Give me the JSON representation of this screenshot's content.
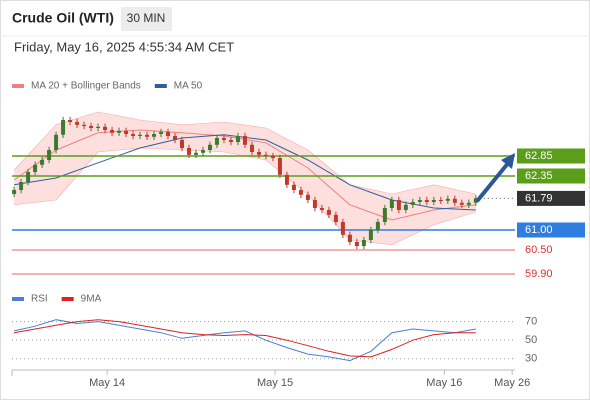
{
  "header": {
    "title": "Crude Oil (WTI)",
    "timeframe": "30 MIN",
    "timestamp": "Friday, May 16, 2025 4:55:34 AM CET"
  },
  "chart_data": [
    {
      "type": "candlestick",
      "up_color": "#3c7a2e",
      "down_color": "#c0392b",
      "xlim": [
        -0.3,
        71.6
      ],
      "xticks": [
        {
          "value": 13.3,
          "label": "May 14"
        },
        {
          "value": 37.3,
          "label": "May 15"
        },
        {
          "value": 61.5,
          "label": "May 16"
        },
        {
          "value": 71.2,
          "label": "May 26"
        }
      ],
      "ylim": [
        59.75,
        65.125
      ],
      "x": [
        0,
        1,
        2,
        3,
        4,
        5,
        6,
        7,
        8,
        9,
        10,
        11,
        12,
        13,
        14,
        15,
        16,
        17,
        18,
        19,
        20,
        21,
        22,
        23,
        24,
        25,
        26,
        27,
        28,
        29,
        30,
        31,
        32,
        33,
        34,
        35,
        36,
        37,
        38,
        39,
        40,
        41,
        42,
        43,
        44,
        45,
        46,
        47,
        48,
        49,
        50,
        51,
        52,
        53,
        54,
        55,
        56,
        57,
        58,
        59,
        60,
        61,
        62,
        63,
        64,
        65,
        66
      ],
      "open": [
        61.9,
        62.0,
        62.2,
        62.45,
        62.63,
        62.75,
        63.0,
        63.38,
        63.75,
        63.7,
        63.63,
        63.6,
        63.55,
        63.58,
        63.5,
        63.43,
        63.48,
        63.4,
        63.35,
        63.38,
        63.33,
        63.4,
        63.45,
        63.35,
        63.25,
        63.05,
        62.88,
        62.93,
        63.0,
        63.13,
        63.3,
        63.25,
        63.2,
        63.35,
        63.13,
        62.95,
        62.88,
        62.85,
        62.8,
        62.38,
        62.13,
        62.0,
        61.88,
        61.75,
        61.55,
        61.5,
        61.38,
        61.2,
        60.88,
        60.7,
        60.6,
        60.75,
        61.0,
        61.2,
        61.55,
        61.75,
        61.5,
        61.63,
        61.7,
        61.75,
        61.7,
        61.75,
        61.73,
        61.78,
        61.68,
        61.63,
        61.68
      ],
      "close": [
        62.0,
        62.2,
        62.45,
        62.63,
        62.75,
        63.0,
        63.38,
        63.75,
        63.7,
        63.63,
        63.6,
        63.55,
        63.58,
        63.5,
        63.43,
        63.48,
        63.4,
        63.35,
        63.38,
        63.33,
        63.4,
        63.45,
        63.35,
        63.25,
        63.05,
        62.88,
        62.93,
        63.0,
        63.13,
        63.3,
        63.25,
        63.2,
        63.35,
        63.13,
        62.95,
        62.88,
        62.85,
        62.8,
        62.38,
        62.13,
        62.0,
        61.88,
        61.75,
        61.55,
        61.5,
        61.38,
        61.2,
        60.88,
        60.7,
        60.6,
        60.75,
        61.0,
        61.2,
        61.55,
        61.75,
        61.5,
        61.63,
        61.7,
        61.75,
        61.7,
        61.75,
        61.73,
        61.78,
        61.68,
        61.63,
        61.68,
        61.79
      ],
      "high": [
        62.08,
        62.28,
        62.53,
        62.71,
        62.83,
        63.08,
        63.46,
        63.83,
        63.83,
        63.78,
        63.71,
        63.68,
        63.66,
        63.66,
        63.58,
        63.56,
        63.56,
        63.48,
        63.46,
        63.46,
        63.48,
        63.53,
        63.53,
        63.43,
        63.33,
        63.13,
        63.01,
        63.08,
        63.21,
        63.38,
        63.38,
        63.33,
        63.43,
        63.43,
        63.21,
        63.03,
        62.96,
        62.93,
        62.88,
        62.46,
        62.21,
        62.08,
        61.96,
        61.83,
        61.63,
        61.58,
        61.46,
        61.28,
        60.96,
        60.78,
        60.83,
        61.08,
        61.28,
        61.63,
        61.83,
        61.83,
        61.71,
        61.78,
        61.83,
        61.83,
        61.83,
        61.83,
        61.86,
        61.86,
        61.76,
        61.76,
        61.87
      ],
      "low": [
        61.82,
        61.92,
        62.12,
        62.37,
        62.55,
        62.67,
        62.92,
        63.3,
        63.62,
        63.55,
        63.52,
        63.47,
        63.47,
        63.42,
        63.35,
        63.35,
        63.32,
        63.27,
        63.27,
        63.25,
        63.25,
        63.32,
        63.27,
        63.17,
        62.97,
        62.8,
        62.8,
        62.85,
        62.92,
        63.05,
        63.17,
        63.12,
        63.12,
        63.05,
        62.87,
        62.8,
        62.77,
        62.72,
        62.3,
        62.05,
        61.92,
        61.8,
        61.67,
        61.47,
        61.42,
        61.3,
        61.12,
        60.8,
        60.62,
        60.52,
        60.52,
        60.67,
        60.92,
        61.12,
        61.47,
        61.42,
        61.42,
        61.55,
        61.62,
        61.62,
        61.62,
        61.65,
        61.65,
        61.6,
        61.55,
        61.55,
        61.6
      ],
      "series": [
        {
          "name": "MA 20 + Bollinger Bands",
          "color": "#f08080",
          "band_color": "#fde0de",
          "x": [
            0,
            6,
            12,
            18,
            24,
            30,
            36,
            42,
            48,
            54,
            60,
            66
          ],
          "values": [
            62.25,
            63.0,
            63.43,
            63.5,
            63.43,
            63.35,
            63.18,
            62.55,
            61.63,
            61.25,
            61.5,
            61.63
          ],
          "upper": [
            62.5,
            63.63,
            63.95,
            63.75,
            63.63,
            63.7,
            63.55,
            63.0,
            62.13,
            61.9,
            62.13,
            61.9
          ],
          "lower": [
            61.63,
            61.75,
            62.95,
            63.05,
            63.0,
            62.95,
            62.75,
            61.88,
            60.75,
            60.63,
            61.13,
            61.45
          ]
        },
        {
          "name": "MA 50",
          "color": "#2f5f9e",
          "x": [
            0,
            6,
            12,
            18,
            24,
            30,
            36,
            42,
            48,
            54,
            60,
            66
          ],
          "values": [
            62.13,
            62.3,
            62.68,
            63.05,
            63.3,
            63.38,
            63.25,
            62.75,
            62.13,
            61.75,
            61.55,
            61.5
          ]
        }
      ],
      "levels": [
        {
          "value": 62.85,
          "color": "#5a9e1a",
          "style": "box"
        },
        {
          "value": 62.35,
          "color": "#5a9e1a",
          "style": "box"
        },
        {
          "value": 61.79,
          "color": "#333333",
          "style": "last"
        },
        {
          "value": 61,
          "label": "61.00",
          "color": "#2f7de1",
          "style": "box"
        },
        {
          "value": 60.5,
          "label": "60.50",
          "color": "#e03030",
          "style": "text"
        },
        {
          "value": 59.9,
          "label": "59.90",
          "color": "#e03030",
          "style": "text"
        }
      ]
    },
    {
      "type": "line",
      "xlim": [
        -0.3,
        71.6
      ],
      "ylim": [
        20,
        82.5
      ],
      "yticks": [
        70,
        50,
        30
      ],
      "series": [
        {
          "name": "RSI",
          "color": "#4a7fd4",
          "x": [
            0,
            3,
            6,
            9,
            12,
            15,
            18,
            21,
            24,
            27,
            30,
            33,
            36,
            39,
            42,
            45,
            48,
            51,
            54,
            57,
            60,
            63,
            66
          ],
          "values": [
            60,
            65,
            72,
            68,
            70,
            66,
            62,
            58,
            52,
            55,
            58,
            60,
            50,
            42,
            35,
            32,
            28,
            38,
            58,
            62,
            60,
            58,
            62
          ]
        },
        {
          "name": "9MA",
          "color": "#e02020",
          "x": [
            0,
            3,
            6,
            9,
            12,
            15,
            18,
            21,
            24,
            27,
            30,
            33,
            36,
            39,
            42,
            45,
            48,
            51,
            54,
            57,
            60,
            63,
            66
          ],
          "values": [
            58,
            62,
            66,
            70,
            72,
            70,
            66,
            62,
            58,
            56,
            55,
            56,
            55,
            50,
            44,
            38,
            33,
            32,
            40,
            50,
            56,
            58,
            58
          ]
        }
      ]
    }
  ]
}
